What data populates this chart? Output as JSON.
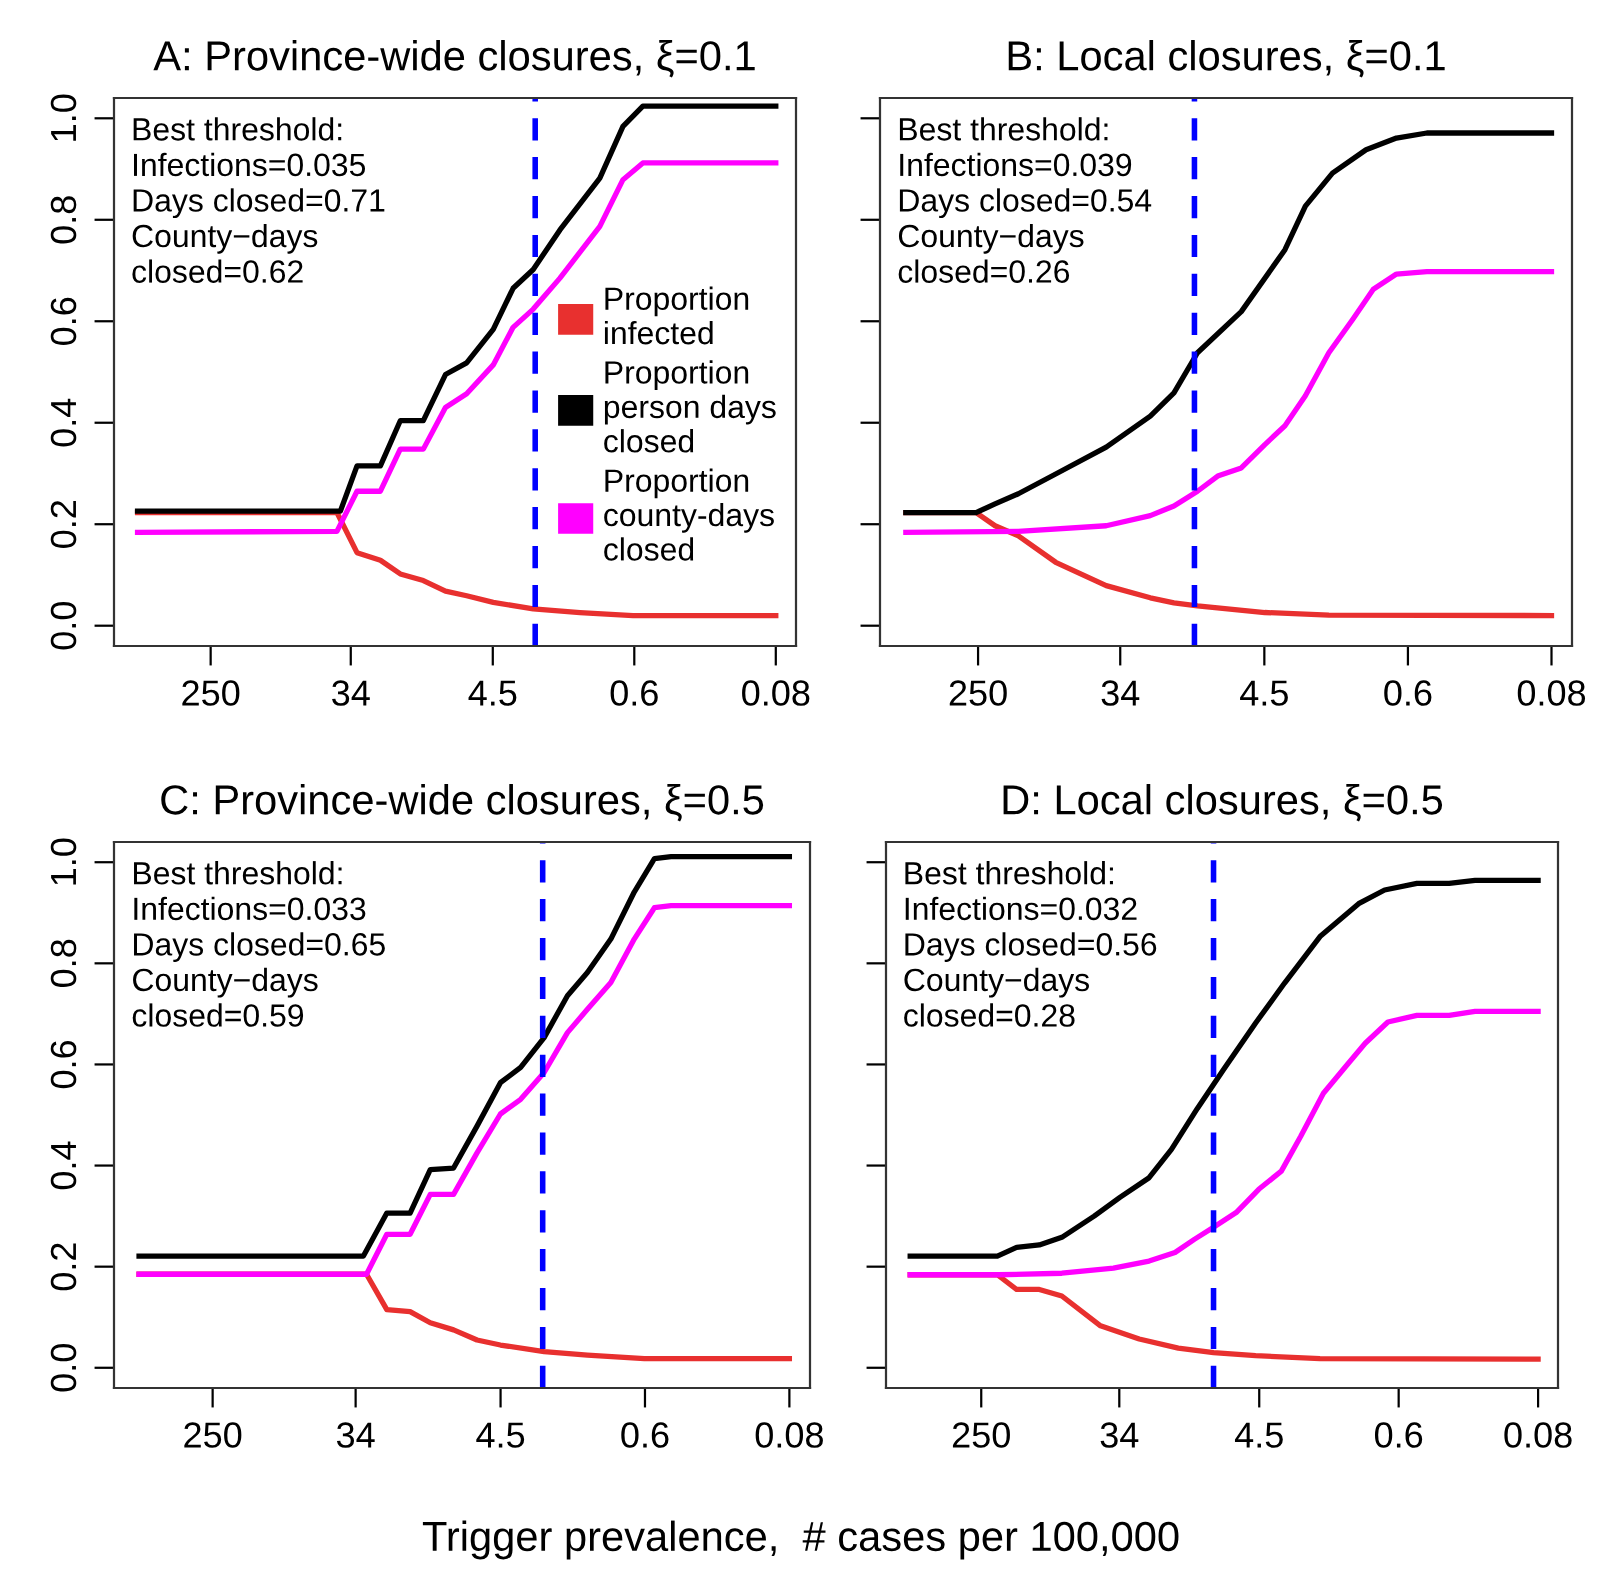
{
  "chart_data": [
    {
      "type": "line",
      "title": "A: Province-wide closures, ξ=0.1",
      "log": "x",
      "grid": false,
      "legend": "right",
      "marker": "none",
      "line_style": "solid",
      "xlim": [
        990,
        0.06
      ],
      "xticks": [
        250,
        34,
        4.5,
        0.6,
        0.08
      ],
      "ylim": [
        -0.04,
        1.04
      ],
      "yticks": [
        {
          "value": 0,
          "label": "0.0"
        },
        {
          "value": 0.2,
          "label": "0.2"
        },
        {
          "value": 0.4,
          "label": "0.4"
        },
        {
          "value": 0.6,
          "label": "0.6"
        },
        {
          "value": 0.8,
          "label": "0.8"
        },
        {
          "value": 1,
          "label": "1.0"
        }
      ],
      "annotations": [
        "Best threshold:",
        "Infections=0.035",
        "Days closed=0.71",
        "County−days",
        "closed=0.62"
      ],
      "ref_lines": [
        {
          "axis": "x",
          "value": 2.46,
          "label": null,
          "color": "#0000ff",
          "line_style": "dashed"
        }
      ],
      "series": [
        {
          "name": "Proportion infected",
          "color": "#e8302f",
          "x": [
            708,
            41.4,
            31.1,
            22.3,
            16.8,
            12.1,
            8.83,
            6.53,
            4.47,
            2.53,
            1.3,
            0.611,
            0.08
          ],
          "values": [
            0.223,
            0.223,
            0.144,
            0.129,
            0.102,
            0.089,
            0.068,
            0.059,
            0.046,
            0.033,
            0.026,
            0.02,
            0.02
          ]
        },
        {
          "name": "Proportion person days closed",
          "color": "#000000",
          "x": [
            708,
            39.4,
            31.1,
            22.3,
            16.8,
            12.1,
            8.83,
            6.53,
            4.47,
            3.37,
            2.53,
            1.73,
            0.98,
            0.705,
            0.531,
            0.08
          ],
          "values": [
            0.226,
            0.226,
            0.315,
            0.315,
            0.404,
            0.404,
            0.495,
            0.518,
            0.584,
            0.665,
            0.702,
            0.78,
            0.882,
            0.984,
            1.024,
            1.024
          ]
        },
        {
          "name": "Proportion county-days closed",
          "color": "#ff00ff",
          "x": [
            708,
            41.4,
            31.1,
            22.3,
            16.8,
            12.1,
            8.83,
            6.53,
            4.47,
            3.37,
            2.53,
            1.73,
            0.98,
            0.705,
            0.531,
            0.08
          ],
          "values": [
            0.184,
            0.186,
            0.265,
            0.265,
            0.348,
            0.348,
            0.43,
            0.457,
            0.514,
            0.588,
            0.624,
            0.685,
            0.787,
            0.879,
            0.912,
            0.912
          ]
        }
      ]
    },
    {
      "type": "line",
      "title": "B: Local closures, ξ=0.1",
      "log": "x",
      "grid": false,
      "tick_labels": "x",
      "marker": "none",
      "line_style": "solid",
      "xlim": [
        990,
        0.06
      ],
      "xticks": [
        250,
        34,
        4.5,
        0.6,
        0.08
      ],
      "ylim": [
        -0.04,
        1.04
      ],
      "yticks": [
        {
          "value": 0,
          "label": null
        },
        {
          "value": 0.2,
          "label": null
        },
        {
          "value": 0.4,
          "label": null
        },
        {
          "value": 0.6,
          "label": null
        },
        {
          "value": 0.8,
          "label": null
        },
        {
          "value": 1,
          "label": null
        }
      ],
      "annotations": [
        "Best threshold:",
        "Infections=0.039",
        "Days closed=0.54",
        "County−days",
        "closed=0.26"
      ],
      "ref_lines": [
        {
          "axis": "x",
          "value": 12,
          "label": null,
          "color": "#0000ff",
          "line_style": "dashed"
        }
      ],
      "series": [
        {
          "color": "#e8302f",
          "x": [
            689,
            257,
            197,
            142,
            84.1,
            41.4,
            22.3,
            16.0,
            11.5,
            4.47,
            1.82,
            0.08
          ],
          "values": [
            0.223,
            0.223,
            0.197,
            0.177,
            0.125,
            0.079,
            0.055,
            0.045,
            0.039,
            0.026,
            0.021,
            0.02
          ]
        },
        {
          "color": "#000000",
          "x": [
            689,
            257,
            197,
            142,
            84.1,
            41.4,
            22.3,
            16.0,
            11.5,
            6.22,
            3.37,
            2.53,
            1.73,
            1.08,
            0.705,
            0.46,
            0.08
          ],
          "values": [
            0.223,
            0.223,
            0.24,
            0.26,
            0.299,
            0.352,
            0.413,
            0.459,
            0.538,
            0.619,
            0.741,
            0.827,
            0.892,
            0.938,
            0.961,
            0.971,
            0.971
          ]
        },
        {
          "color": "#ff00ff",
          "x": [
            689,
            142,
            41.4,
            22.3,
            16.0,
            11.5,
            8.66,
            6.22,
            4.47,
            3.37,
            2.53,
            1.82,
            1.3,
            0.975,
            0.705,
            0.46,
            0.08
          ],
          "values": [
            0.184,
            0.186,
            0.197,
            0.217,
            0.236,
            0.265,
            0.295,
            0.311,
            0.357,
            0.394,
            0.453,
            0.538,
            0.604,
            0.663,
            0.693,
            0.698,
            0.698
          ]
        }
      ]
    },
    {
      "type": "line",
      "title": "C: Province-wide closures, ξ=0.5",
      "log": "x",
      "grid": false,
      "marker": "none",
      "line_style": "solid",
      "xlim": [
        990,
        0.06
      ],
      "xticks": [
        250,
        34,
        4.5,
        0.6,
        0.08
      ],
      "ylim": [
        -0.04,
        1.04
      ],
      "yticks": [
        {
          "value": 0,
          "label": "0.0"
        },
        {
          "value": 0.2,
          "label": "0.2"
        },
        {
          "value": 0.4,
          "label": "0.4"
        },
        {
          "value": 0.6,
          "label": "0.6"
        },
        {
          "value": 0.8,
          "label": "0.8"
        },
        {
          "value": 1,
          "label": "1.0"
        }
      ],
      "xlabel": "Trigger prevalence,  # cases per 100,000",
      "annotations": [
        "Best threshold:",
        "Infections=0.033",
        "Days closed=0.65",
        "County−days",
        "closed=0.59"
      ],
      "ref_lines": [
        {
          "axis": "x",
          "value": 2.5,
          "label": null,
          "color": "#0000ff",
          "line_style": "dashed"
        }
      ],
      "series": [
        {
          "color": "#e8302f",
          "x": [
            698,
            29.2,
            22.0,
            15.9,
            12.0,
            8.67,
            6.25,
            4.51,
            2.45,
            1.34,
            0.605,
            0.08
          ],
          "values": [
            0.185,
            0.185,
            0.115,
            0.111,
            0.089,
            0.075,
            0.055,
            0.045,
            0.032,
            0.025,
            0.018,
            0.018
          ]
        },
        {
          "color": "#000000",
          "x": [
            698,
            30.5,
            22.0,
            15.9,
            12.0,
            8.67,
            6.25,
            4.51,
            3.4,
            2.45,
            1.77,
            1.34,
            0.966,
            0.697,
            0.526,
            0.417,
            0.08
          ],
          "values": [
            0.221,
            0.221,
            0.306,
            0.306,
            0.392,
            0.395,
            0.478,
            0.564,
            0.594,
            0.653,
            0.736,
            0.782,
            0.848,
            0.941,
            1.007,
            1.011,
            1.011
          ]
        },
        {
          "color": "#ff00ff",
          "x": [
            698,
            29.2,
            22.0,
            15.9,
            12.0,
            8.67,
            6.25,
            4.51,
            3.4,
            2.45,
            1.77,
            1.34,
            0.966,
            0.697,
            0.526,
            0.417,
            0.08
          ],
          "values": [
            0.185,
            0.185,
            0.264,
            0.264,
            0.343,
            0.343,
            0.425,
            0.502,
            0.531,
            0.584,
            0.663,
            0.709,
            0.762,
            0.848,
            0.91,
            0.914,
            0.914
          ]
        }
      ]
    },
    {
      "type": "line",
      "title": "D: Local closures, ξ=0.5",
      "log": "x",
      "grid": false,
      "tick_labels": "x",
      "marker": "none",
      "line_style": "solid",
      "xlim": [
        990,
        0.06
      ],
      "xticks": [
        250,
        34,
        4.5,
        0.6,
        0.08
      ],
      "ylim": [
        -0.04,
        1.04
      ],
      "yticks": [
        {
          "value": 0,
          "label": null
        },
        {
          "value": 0.2,
          "label": null
        },
        {
          "value": 0.4,
          "label": null
        },
        {
          "value": 0.6,
          "label": null
        },
        {
          "value": 0.8,
          "label": null
        },
        {
          "value": 1,
          "label": null
        }
      ],
      "annotations": [
        "Best threshold:",
        "Infections=0.032",
        "Days closed=0.56",
        "County−days",
        "closed=0.28"
      ],
      "ref_lines": [
        {
          "axis": "x",
          "value": 8.71,
          "label": null,
          "color": "#0000ff",
          "line_style": "dashed"
        }
      ],
      "series": [
        {
          "color": "#e8302f",
          "x": [
            698,
            198,
            150,
            108,
            78.0,
            44.6,
            25.5,
            14.5,
            8.71,
            4.74,
            1.87,
            0.08
          ],
          "values": [
            0.184,
            0.184,
            0.155,
            0.155,
            0.142,
            0.083,
            0.057,
            0.039,
            0.03,
            0.024,
            0.018,
            0.017
          ]
        },
        {
          "color": "#000000",
          "x": [
            698,
            198,
            150,
            108,
            78.0,
            48.9,
            33.7,
            22.1,
            16.0,
            11.0,
            7.57,
            4.74,
            3.12,
            1.87,
            1.07,
            0.735,
            0.461,
            0.289,
            0.199,
            0.08
          ],
          "values": [
            0.221,
            0.221,
            0.238,
            0.243,
            0.258,
            0.3,
            0.337,
            0.376,
            0.432,
            0.513,
            0.589,
            0.682,
            0.761,
            0.853,
            0.918,
            0.945,
            0.958,
            0.958,
            0.964,
            0.964
          ]
        },
        {
          "color": "#ff00ff",
          "x": [
            698,
            198,
            78.0,
            37.0,
            22.1,
            15.2,
            11.5,
            8.71,
            6.28,
            4.53,
            3.27,
            2.47,
            1.78,
            1.29,
            0.973,
            0.701,
            0.461,
            0.289,
            0.199,
            0.08
          ],
          "values": [
            0.184,
            0.184,
            0.187,
            0.197,
            0.211,
            0.228,
            0.254,
            0.278,
            0.307,
            0.353,
            0.389,
            0.458,
            0.543,
            0.596,
            0.642,
            0.684,
            0.697,
            0.697,
            0.705,
            0.705
          ]
        }
      ]
    }
  ]
}
